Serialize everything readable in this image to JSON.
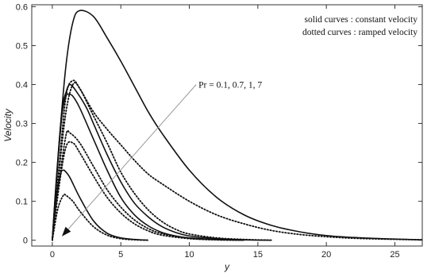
{
  "chart_data": {
    "type": "line",
    "xlabel": "y",
    "ylabel": "Velocity",
    "xlim": [
      -1.5,
      27
    ],
    "ylim": [
      -0.015,
      0.605
    ],
    "x_ticks": [
      0,
      5,
      10,
      15,
      20,
      25
    ],
    "x_tick_labels": [
      "0",
      "5",
      "10",
      "15",
      "20",
      "25"
    ],
    "y_ticks": [
      0,
      0.1,
      0.2,
      0.3,
      0.4,
      0.5,
      0.6
    ],
    "y_tick_labels": [
      "0",
      "0.1",
      "0.2",
      "0.3",
      "0.4",
      "0.5",
      "0.6"
    ],
    "legend": {
      "position": "top-right",
      "solid_label": "solid curves",
      "solid_desc": "constant velocity",
      "dotted_label": "dotted curves",
      "dotted_desc": "ramped velocity"
    },
    "annotation": {
      "text": "Pr = 0.1, 0.7, 1, 7",
      "arrow_from": [
        10.5,
        0.4
      ],
      "arrow_to": [
        0.7,
        0.01
      ]
    },
    "series": [
      {
        "style": "solid",
        "points": [
          [
            0,
            0
          ],
          [
            0.5,
            0.25
          ],
          [
            1,
            0.45
          ],
          [
            1.5,
            0.56
          ],
          [
            2,
            0.59
          ],
          [
            3,
            0.575
          ],
          [
            4,
            0.52
          ],
          [
            5,
            0.46
          ],
          [
            6,
            0.395
          ],
          [
            7,
            0.33
          ],
          [
            8,
            0.275
          ],
          [
            10,
            0.18
          ],
          [
            12,
            0.11
          ],
          [
            14,
            0.065
          ],
          [
            16,
            0.038
          ],
          [
            18,
            0.022
          ],
          [
            20,
            0.012
          ],
          [
            22,
            0.007
          ],
          [
            24,
            0.004
          ],
          [
            26,
            0.002
          ],
          [
            27,
            0.001
          ]
        ]
      },
      {
        "style": "dotted",
        "points": [
          [
            0,
            0
          ],
          [
            0.5,
            0.19
          ],
          [
            1,
            0.37
          ],
          [
            1.5,
            0.41
          ],
          [
            2,
            0.39
          ],
          [
            3,
            0.33
          ],
          [
            4,
            0.285
          ],
          [
            5,
            0.245
          ],
          [
            6,
            0.205
          ],
          [
            7,
            0.17
          ],
          [
            8,
            0.145
          ],
          [
            10,
            0.1
          ],
          [
            12,
            0.065
          ],
          [
            14,
            0.042
          ],
          [
            16,
            0.025
          ],
          [
            18,
            0.015
          ],
          [
            20,
            0.009
          ],
          [
            22,
            0.005
          ],
          [
            24,
            0.003
          ],
          [
            26,
            0.0015
          ],
          [
            27,
            0.001
          ]
        ]
      },
      {
        "style": "solid",
        "points": [
          [
            0,
            0
          ],
          [
            0.3,
            0.16
          ],
          [
            0.7,
            0.33
          ],
          [
            1,
            0.38
          ],
          [
            1.3,
            0.4
          ],
          [
            1.8,
            0.38
          ],
          [
            2.5,
            0.34
          ],
          [
            3,
            0.3
          ],
          [
            4,
            0.22
          ],
          [
            5,
            0.15
          ],
          [
            6,
            0.095
          ],
          [
            7,
            0.06
          ],
          [
            8,
            0.035
          ],
          [
            9,
            0.02
          ],
          [
            10,
            0.011
          ],
          [
            12,
            0.004
          ],
          [
            14,
            0.001
          ],
          [
            16,
            0
          ]
        ]
      },
      {
        "style": "dotted",
        "points": [
          [
            0,
            0
          ],
          [
            0.5,
            0.18
          ],
          [
            1,
            0.33
          ],
          [
            1.5,
            0.4
          ],
          [
            2,
            0.39
          ],
          [
            3,
            0.32
          ],
          [
            4,
            0.25
          ],
          [
            5,
            0.175
          ],
          [
            6,
            0.12
          ],
          [
            7,
            0.078
          ],
          [
            8,
            0.048
          ],
          [
            9,
            0.028
          ],
          [
            10,
            0.016
          ],
          [
            12,
            0.006
          ],
          [
            14,
            0.002
          ],
          [
            16,
            0
          ]
        ]
      },
      {
        "style": "solid",
        "points": [
          [
            0,
            0
          ],
          [
            0.3,
            0.15
          ],
          [
            0.7,
            0.32
          ],
          [
            1,
            0.37
          ],
          [
            1.2,
            0.375
          ],
          [
            1.5,
            0.37
          ],
          [
            2,
            0.34
          ],
          [
            3,
            0.26
          ],
          [
            4,
            0.18
          ],
          [
            5,
            0.11
          ],
          [
            6,
            0.065
          ],
          [
            7,
            0.037
          ],
          [
            8,
            0.02
          ],
          [
            9,
            0.011
          ],
          [
            10,
            0.006
          ],
          [
            12,
            0.002
          ],
          [
            14,
            0
          ]
        ]
      },
      {
        "style": "dotted",
        "points": [
          [
            0,
            0
          ],
          [
            0.5,
            0.15
          ],
          [
            1,
            0.27
          ],
          [
            1.3,
            0.275
          ],
          [
            2,
            0.25
          ],
          [
            3,
            0.19
          ],
          [
            4,
            0.13
          ],
          [
            5,
            0.085
          ],
          [
            6,
            0.052
          ],
          [
            7,
            0.03
          ],
          [
            8,
            0.017
          ],
          [
            10,
            0.005
          ],
          [
            12,
            0.001
          ],
          [
            14,
            0
          ]
        ]
      },
      {
        "style": "dotted",
        "points": [
          [
            0,
            0
          ],
          [
            0.5,
            0.14
          ],
          [
            1,
            0.24
          ],
          [
            1.5,
            0.25
          ],
          [
            2,
            0.225
          ],
          [
            3,
            0.165
          ],
          [
            4,
            0.11
          ],
          [
            5,
            0.07
          ],
          [
            6,
            0.042
          ],
          [
            7,
            0.024
          ],
          [
            8,
            0.013
          ],
          [
            10,
            0.004
          ],
          [
            12,
            0.001
          ],
          [
            14,
            0
          ]
        ]
      },
      {
        "style": "solid",
        "points": [
          [
            0,
            0
          ],
          [
            0.3,
            0.11
          ],
          [
            0.6,
            0.17
          ],
          [
            0.8,
            0.18
          ],
          [
            1,
            0.175
          ],
          [
            1.3,
            0.16
          ],
          [
            2,
            0.11
          ],
          [
            3,
            0.05
          ],
          [
            4,
            0.018
          ],
          [
            5,
            0.006
          ],
          [
            6,
            0.002
          ],
          [
            7,
            0
          ]
        ]
      },
      {
        "style": "dotted",
        "points": [
          [
            0,
            0
          ],
          [
            0.4,
            0.08
          ],
          [
            0.8,
            0.115
          ],
          [
            1,
            0.115
          ],
          [
            1.5,
            0.1
          ],
          [
            2,
            0.075
          ],
          [
            3,
            0.035
          ],
          [
            4,
            0.013
          ],
          [
            5,
            0.004
          ],
          [
            6,
            0.001
          ],
          [
            7,
            0
          ]
        ]
      }
    ]
  }
}
